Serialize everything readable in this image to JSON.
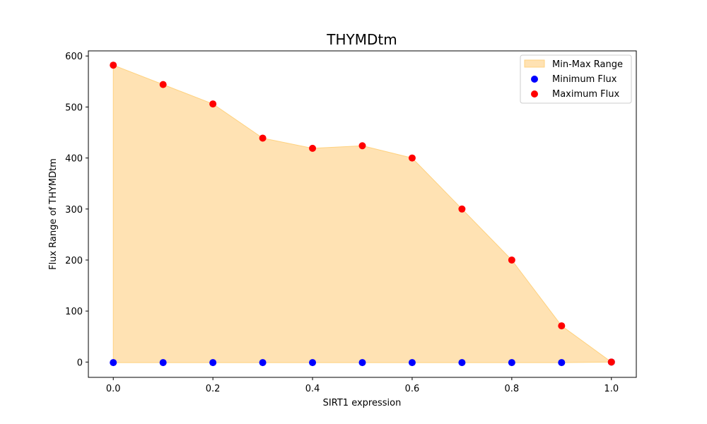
{
  "chart_data": {
    "type": "area",
    "title": "THYMDtm",
    "xlabel": "SIRT1 expression",
    "ylabel": "Flux Range of THYMDtm",
    "x": [
      0.0,
      0.1,
      0.2,
      0.3,
      0.4,
      0.5,
      0.6,
      0.7,
      0.8,
      0.9,
      1.0
    ],
    "xlim": [
      -0.05,
      1.05
    ],
    "ylim": [
      -30,
      610
    ],
    "xticks": [
      0.0,
      0.2,
      0.4,
      0.6,
      0.8,
      1.0
    ],
    "xtick_labels": [
      "0.0",
      "0.2",
      "0.4",
      "0.6",
      "0.8",
      "1.0"
    ],
    "yticks": [
      0,
      100,
      200,
      300,
      400,
      500,
      600
    ],
    "ytick_labels": [
      "0",
      "100",
      "200",
      "300",
      "400",
      "500",
      "600"
    ],
    "series": [
      {
        "name": "Min-Max Range",
        "kind": "fill_between",
        "color": "#ffe2b3"
      },
      {
        "name": "Minimum Flux",
        "kind": "scatter",
        "color": "#0000ff",
        "values": [
          -1,
          -1,
          -1,
          -1,
          -1,
          -1,
          -1,
          -1,
          -1,
          -1,
          0
        ]
      },
      {
        "name": "Maximum Flux",
        "kind": "scatter",
        "color": "#ff0000",
        "values": [
          582,
          544,
          506,
          439,
          419,
          424,
          400,
          300,
          200,
          71,
          0
        ]
      }
    ],
    "legend": {
      "position": "top-right",
      "entries": [
        "Min-Max Range",
        "Minimum Flux",
        "Maximum Flux"
      ]
    },
    "grid": false
  }
}
